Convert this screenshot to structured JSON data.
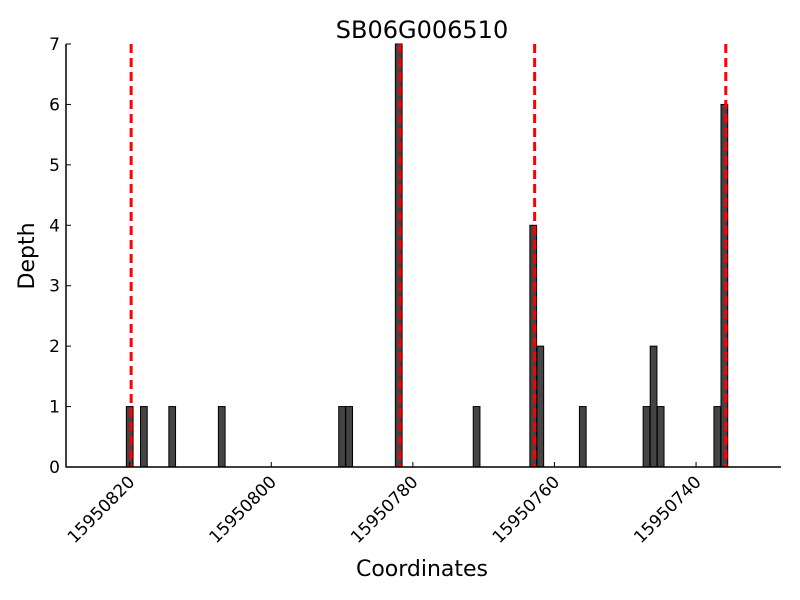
{
  "chart_data": {
    "type": "bar",
    "title": "SB06G006510",
    "xlabel": "Coordinates",
    "ylabel": "Depth",
    "x_reversed": true,
    "xlim": [
      15950829,
      15950728
    ],
    "ylim": [
      0,
      7
    ],
    "yticks": [
      0,
      1,
      2,
      3,
      4,
      5,
      6,
      7
    ],
    "xticks": [
      15950820,
      15950800,
      15950780,
      15950760,
      15950740
    ],
    "bar_color": "#444444",
    "marker_color": "#ff0000",
    "bars": [
      {
        "x": 15950820,
        "y": 1
      },
      {
        "x": 15950818,
        "y": 1
      },
      {
        "x": 15950814,
        "y": 1
      },
      {
        "x": 15950807,
        "y": 1
      },
      {
        "x": 15950790,
        "y": 1
      },
      {
        "x": 15950789,
        "y": 1
      },
      {
        "x": 15950782,
        "y": 7
      },
      {
        "x": 15950771,
        "y": 1
      },
      {
        "x": 15950763,
        "y": 4
      },
      {
        "x": 15950762,
        "y": 2
      },
      {
        "x": 15950756,
        "y": 1
      },
      {
        "x": 15950747,
        "y": 1
      },
      {
        "x": 15950746,
        "y": 2
      },
      {
        "x": 15950745,
        "y": 1
      },
      {
        "x": 15950737,
        "y": 1
      },
      {
        "x": 15950736,
        "y": 6
      }
    ],
    "markers": [
      15950819.8,
      15950781.8,
      15950762.8,
      15950735.8
    ]
  }
}
